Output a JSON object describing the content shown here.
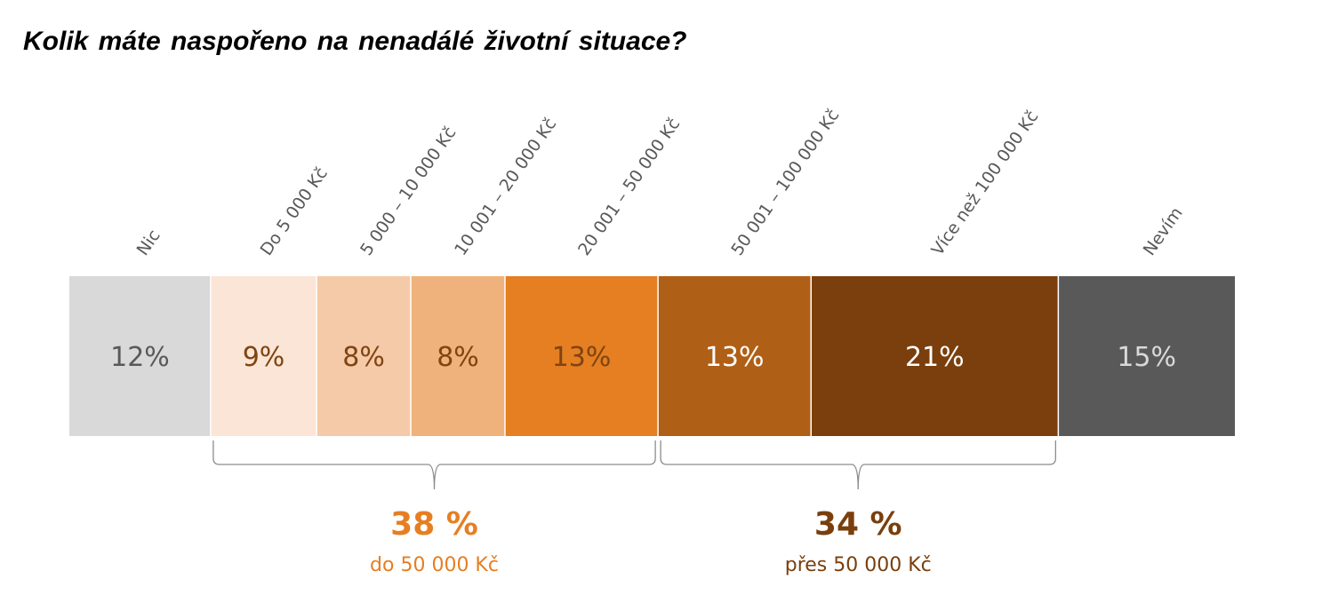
{
  "chart_data": {
    "type": "bar",
    "orientation": "horizontal-stacked-100",
    "title": "Kolik máte naspořeno na nenadálé životní situace?",
    "unit": "%",
    "categories": [
      "Nic",
      "Do 5 000 Kč",
      "5 000 – 10 000 Kč",
      "10 001 – 20 000 Kč",
      "20 001 – 50 000 Kč",
      "50 001 – 100 000 Kč",
      "Více než 100 000 Kč",
      "Nevím"
    ],
    "values": [
      12,
      9,
      8,
      8,
      13,
      13,
      21,
      15
    ],
    "value_labels": [
      "12%",
      "9%",
      "8%",
      "8%",
      "13%",
      "13%",
      "21%",
      "15%"
    ],
    "colors": [
      "#d9d9d9",
      "#fbe5d6",
      "#f5caa8",
      "#f0b27c",
      "#e57f22",
      "#b05f16",
      "#7a3f0d",
      "#595959"
    ],
    "label_colors": [
      "#595959",
      "#7f4410",
      "#7f4410",
      "#7f4410",
      "#7f4410",
      "#ffffff",
      "#ffffff",
      "#d9d9d9"
    ],
    "groups": [
      {
        "from": 1,
        "to": 4,
        "total": "38 %",
        "caption": "do 50 000 Kč",
        "color": "#e57f22"
      },
      {
        "from": 5,
        "to": 6,
        "total": "34 %",
        "caption": "přes 50 000 Kč",
        "color": "#7a3f0d"
      }
    ]
  }
}
